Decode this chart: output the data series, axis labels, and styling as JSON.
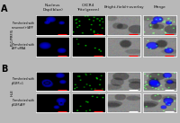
{
  "panel_label_A": "A",
  "panel_label_B": "B",
  "col_headers": [
    "Nucleus\nDapi(blue)",
    "CXCR4\nTritc(green)",
    "Bright-field+overlay",
    "Merge"
  ],
  "row_labels_A": [
    "Transfected with\nnonsense(+)AFP",
    "Transfected with\nAFP siRNA"
  ],
  "row_labels_B": [
    "Transfected with\npEGFP-c1",
    "Transfected with\npEGFP-AFP"
  ],
  "cell_label_A": "PLC/PRF/5",
  "cell_label_B": "HLE",
  "figure_bg": "#b8b8b8",
  "n_rows": 2,
  "n_cols": 4,
  "configs_A": [
    {
      "nuc": 3,
      "nuc_size": 8,
      "dots": 25,
      "bf_cells": 4
    },
    {
      "nuc": 2,
      "nuc_size": 10,
      "dots": 6,
      "bf_cells": 3
    }
  ],
  "configs_B": [
    {
      "nuc": 4,
      "nuc_size": 9,
      "dots": 20,
      "bf_cells": 5
    },
    {
      "nuc": 3,
      "nuc_size": 8,
      "dots": 10,
      "bf_cells": 4
    }
  ]
}
